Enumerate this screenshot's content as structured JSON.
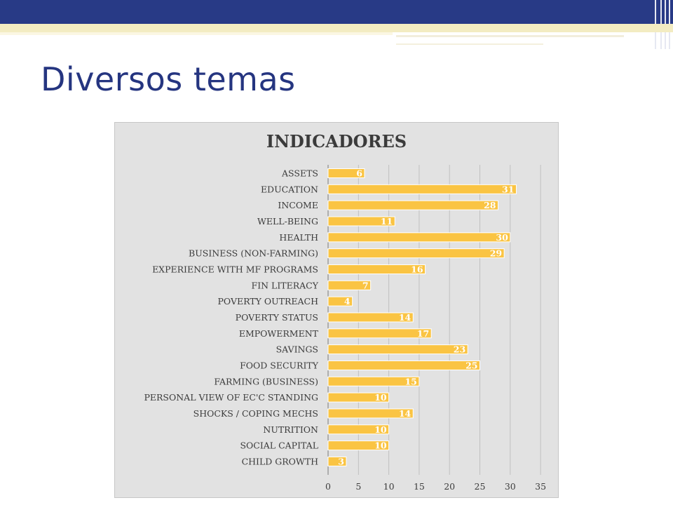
{
  "slide": {
    "title": "Diversos temas"
  },
  "colors": {
    "header_bar": "#283a86",
    "title_text": "#253580",
    "bar_fill": "#fac443",
    "chart_bg": "#e2e2e2"
  },
  "chart_data": {
    "type": "bar",
    "orientation": "horizontal",
    "title": "INDICADORES",
    "categories": [
      "ASSETS",
      "EDUCATION",
      "INCOME",
      "WELL-BEING",
      "HEALTH",
      "BUSINESS (NON-FARMING)",
      "EXPERIENCE WITH MF PROGRAMS",
      "FIN LITERACY",
      "POVERTY OUTREACH",
      "POVERTY STATUS",
      "EMPOWERMENT",
      "SAVINGS",
      "FOOD SECURITY",
      "FARMING (BUSINESS)",
      "PERSONAL VIEW OF EC'C STANDING",
      "SHOCKS / COPING MECHS",
      "NUTRITION",
      "SOCIAL CAPITAL",
      "CHILD GROWTH"
    ],
    "values": [
      6,
      31,
      28,
      11,
      30,
      29,
      16,
      7,
      4,
      14,
      17,
      23,
      25,
      15,
      10,
      14,
      10,
      10,
      3
    ],
    "xlim": [
      0,
      35
    ],
    "xticks": [
      0,
      5,
      10,
      15,
      20,
      25,
      30,
      35
    ],
    "grid": true,
    "data_labels": true
  }
}
